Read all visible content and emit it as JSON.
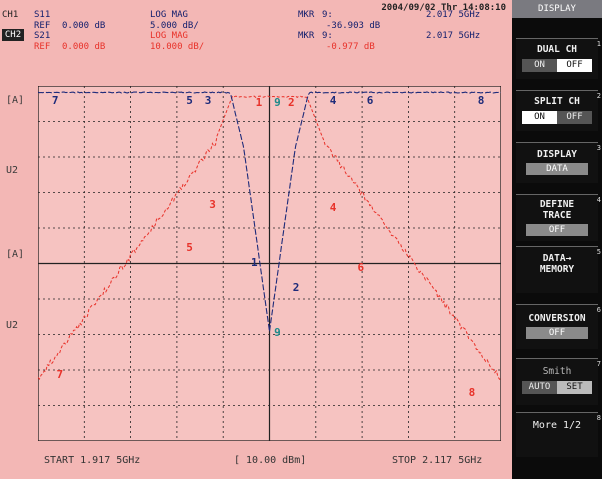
{
  "header": {
    "datetime": "2004/09/02 Thr 14:08:10",
    "ch1": {
      "label": "CH1",
      "param": "S11",
      "format": "LOG MAG",
      "ref": "REF",
      "ref_val": "0.000 dB",
      "scale": "5.000 dB/",
      "mkr": "MKR",
      "mkr_num": "9:",
      "mkr_val": "-36.903 dB",
      "mkr_freq": "2.017 5GHz"
    },
    "ch2": {
      "label": "CH2",
      "param": "S21",
      "format": "LOG MAG",
      "ref": "REF",
      "ref_val": "0.000 dB",
      "scale": "10.000 dB/",
      "mkr": "MKR",
      "mkr_num": "9:",
      "mkr_val": "-0.977 dB",
      "mkr_freq": "2.017 5GHz"
    }
  },
  "side_labels": {
    "a1": "[A]",
    "u2a": "U2",
    "a2": "[A]",
    "u2b": "U2"
  },
  "footer": {
    "start": "START 1.917 5GHz",
    "power": "[ 10.00 dBm]",
    "stop": "STOP 2.117 5GHz"
  },
  "markers": [
    "1",
    "2",
    "3",
    "4",
    "5",
    "6",
    "7",
    "8",
    "9"
  ],
  "softkeys": {
    "title": "DISPLAY",
    "dual_ch": "DUAL CH",
    "on": "ON",
    "off": "OFF",
    "split_ch": "SPLIT CH",
    "display": "DISPLAY",
    "display_val": "DATA",
    "define_trace": "DEFINE TRACE",
    "define_val": "OFF",
    "data_memory": "DATA→ MEMORY",
    "conversion": "CONVERSION",
    "conversion_val": "OFF",
    "smith": "Smith",
    "auto": "AUTO",
    "set": "SET",
    "more": "More 1/2"
  },
  "colors": {
    "s11": "#1e2b7a",
    "s21": "#e8322a",
    "grid": "#222222",
    "bg": "#f3b7b5",
    "plot_bg": "#f6c3c1"
  }
}
